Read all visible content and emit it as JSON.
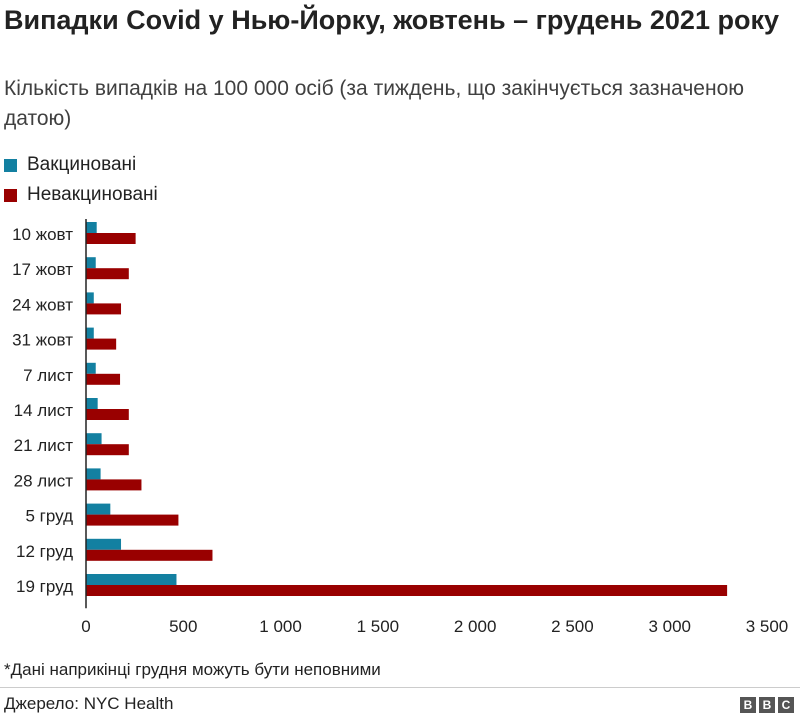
{
  "title": "Випадки Covid у Нью-Йорку, жовтень – грудень 2021 року",
  "subtitle": "Кількість випадків на 100 000 осіб (за тиждень, що закінчується зазначеною датою)",
  "footnote": "*Дані наприкінці грудня можуть бути неповними",
  "source": "Джерело: NYC Health",
  "logo_letters": [
    "B",
    "B",
    "C"
  ],
  "colors": {
    "vaccinated": "#1380A1",
    "unvaccinated": "#990000"
  },
  "legend": [
    {
      "label": "Вакциновані",
      "color": "#1380A1"
    },
    {
      "label": "Невакциновані",
      "color": "#990000"
    }
  ],
  "chart_data": {
    "type": "bar",
    "orientation": "horizontal",
    "categories": [
      "10 жовт",
      "17 жовт",
      "24 жовт",
      "31 жовт",
      "7 лист",
      "14 лист",
      "21 лист",
      "28 лист",
      "5 груд",
      "12 груд",
      "19 груд"
    ],
    "series": [
      {
        "name": "Вакциновані",
        "values": [
          55,
          50,
          40,
          40,
          50,
          60,
          80,
          75,
          125,
          180,
          465
        ]
      },
      {
        "name": "Невакциновані",
        "values": [
          255,
          220,
          180,
          155,
          175,
          220,
          220,
          285,
          475,
          650,
          3295
        ]
      }
    ],
    "xlim": [
      0,
      3500
    ],
    "x_ticks": [
      0,
      500,
      1000,
      1500,
      2000,
      2500,
      3000,
      3500
    ],
    "x_tick_labels": [
      "0",
      "500",
      "1 000",
      "1 500",
      "2 000",
      "2 500",
      "3 000",
      "3 500"
    ],
    "title": "Випадки Covid у Нью-Йорку, жовтень – грудень 2021 року",
    "xlabel": "",
    "ylabel": "",
    "grid": false
  }
}
